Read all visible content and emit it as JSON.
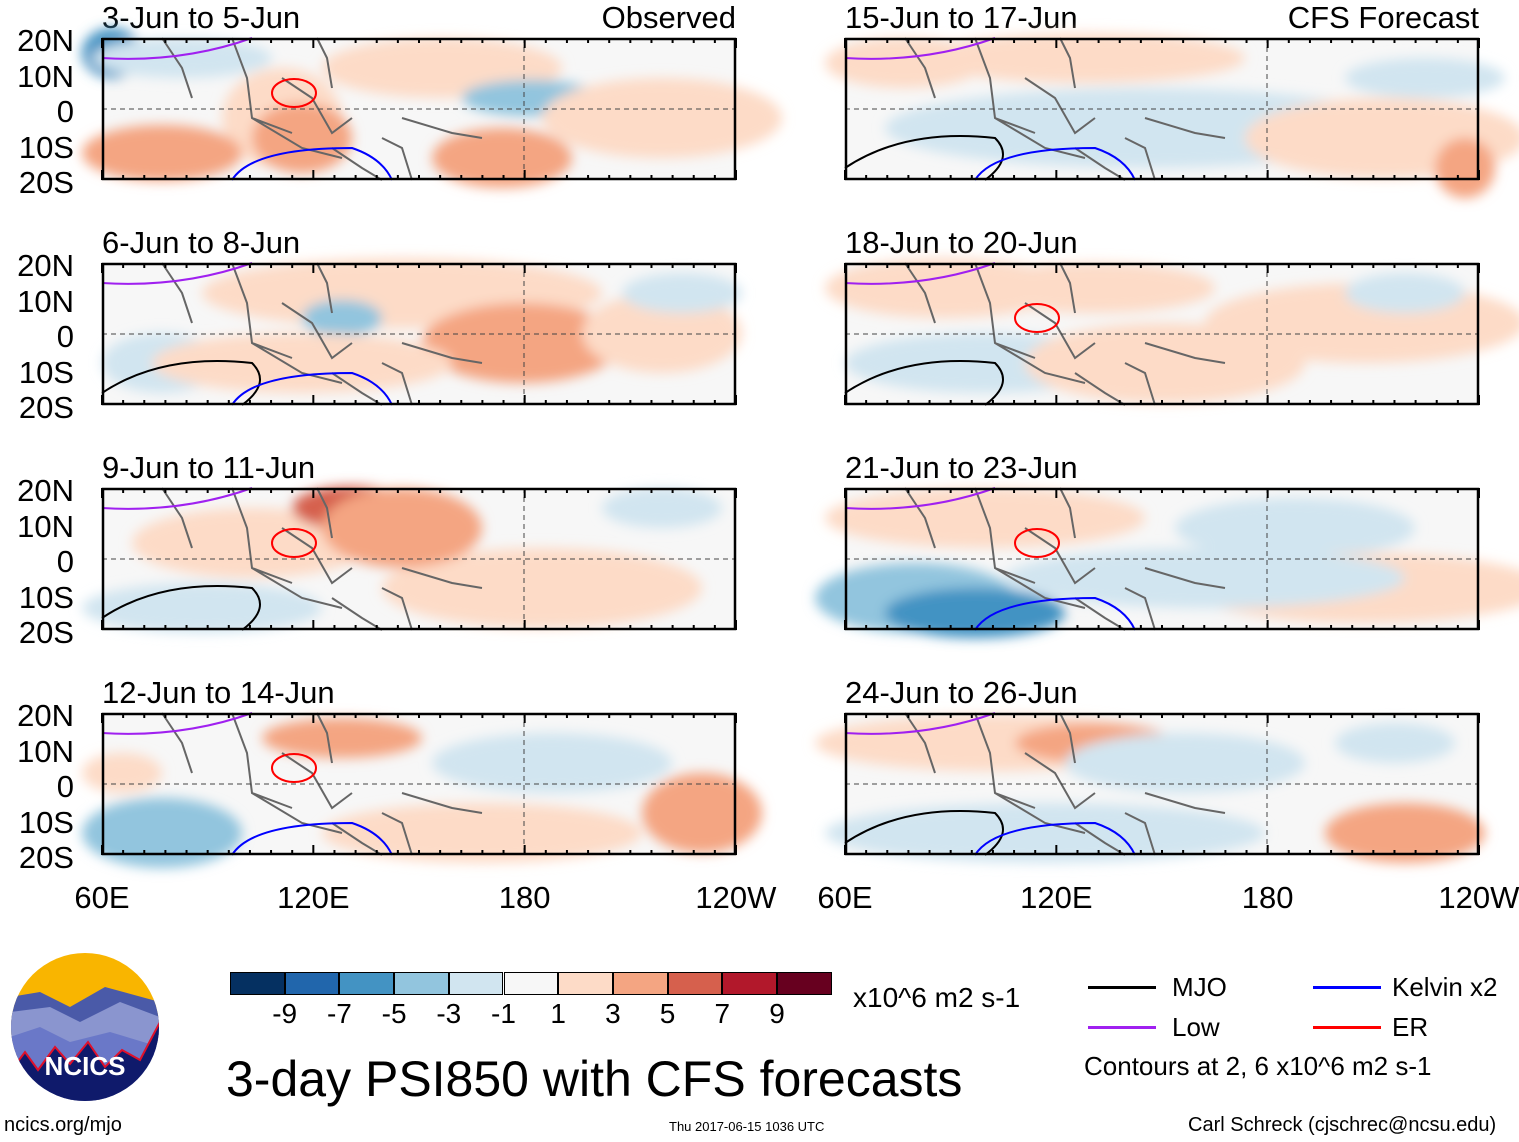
{
  "panels_left": [
    {
      "title": "3-Jun to 5-Jun",
      "tag": "Observed"
    },
    {
      "title": "6-Jun to 8-Jun"
    },
    {
      "title": "9-Jun to 11-Jun"
    },
    {
      "title": "12-Jun to 14-Jun"
    }
  ],
  "panels_right": [
    {
      "title": "15-Jun to 17-Jun",
      "tag": "CFS Forecast"
    },
    {
      "title": "18-Jun to 20-Jun"
    },
    {
      "title": "21-Jun to 23-Jun"
    },
    {
      "title": "24-Jun to 26-Jun"
    }
  ],
  "lat_labels": [
    "20N",
    "10N",
    "0",
    "10S",
    "20S"
  ],
  "lon_labels_left": [
    "60E",
    "120E",
    "180",
    "120W"
  ],
  "lon_labels_right": [
    "60E",
    "120E",
    "180",
    "120W"
  ],
  "colorbar": {
    "colors": [
      "#053061",
      "#2166ac",
      "#4393c3",
      "#92c5de",
      "#d1e5f0",
      "#f7f7f7",
      "#fddbc7",
      "#f4a582",
      "#d6604d",
      "#b2182b",
      "#67001f"
    ],
    "labels": [
      "-9",
      "-7",
      "-5",
      "-3",
      "-1",
      "1",
      "3",
      "5",
      "7",
      "9"
    ],
    "units": "x10^6 m2 s-1"
  },
  "legend": {
    "items": [
      {
        "label": "MJO",
        "color": "#000000"
      },
      {
        "label": "Kelvin x2",
        "color": "#0000ff"
      },
      {
        "label": "Low",
        "color": "#a020f0"
      },
      {
        "label": "ER",
        "color": "#ff0000"
      }
    ],
    "contours": "Contours at 2, 6 x10^6 m2 s-1"
  },
  "title": "3-day PSI850 with CFS forecasts",
  "logo_text": "NCICS",
  "footer": {
    "left": "ncics.org/mjo",
    "center": "Thu 2017-06-15 1036 UTC",
    "right": "Carl Schreck (cjschrec@ncsu.edu)"
  }
}
